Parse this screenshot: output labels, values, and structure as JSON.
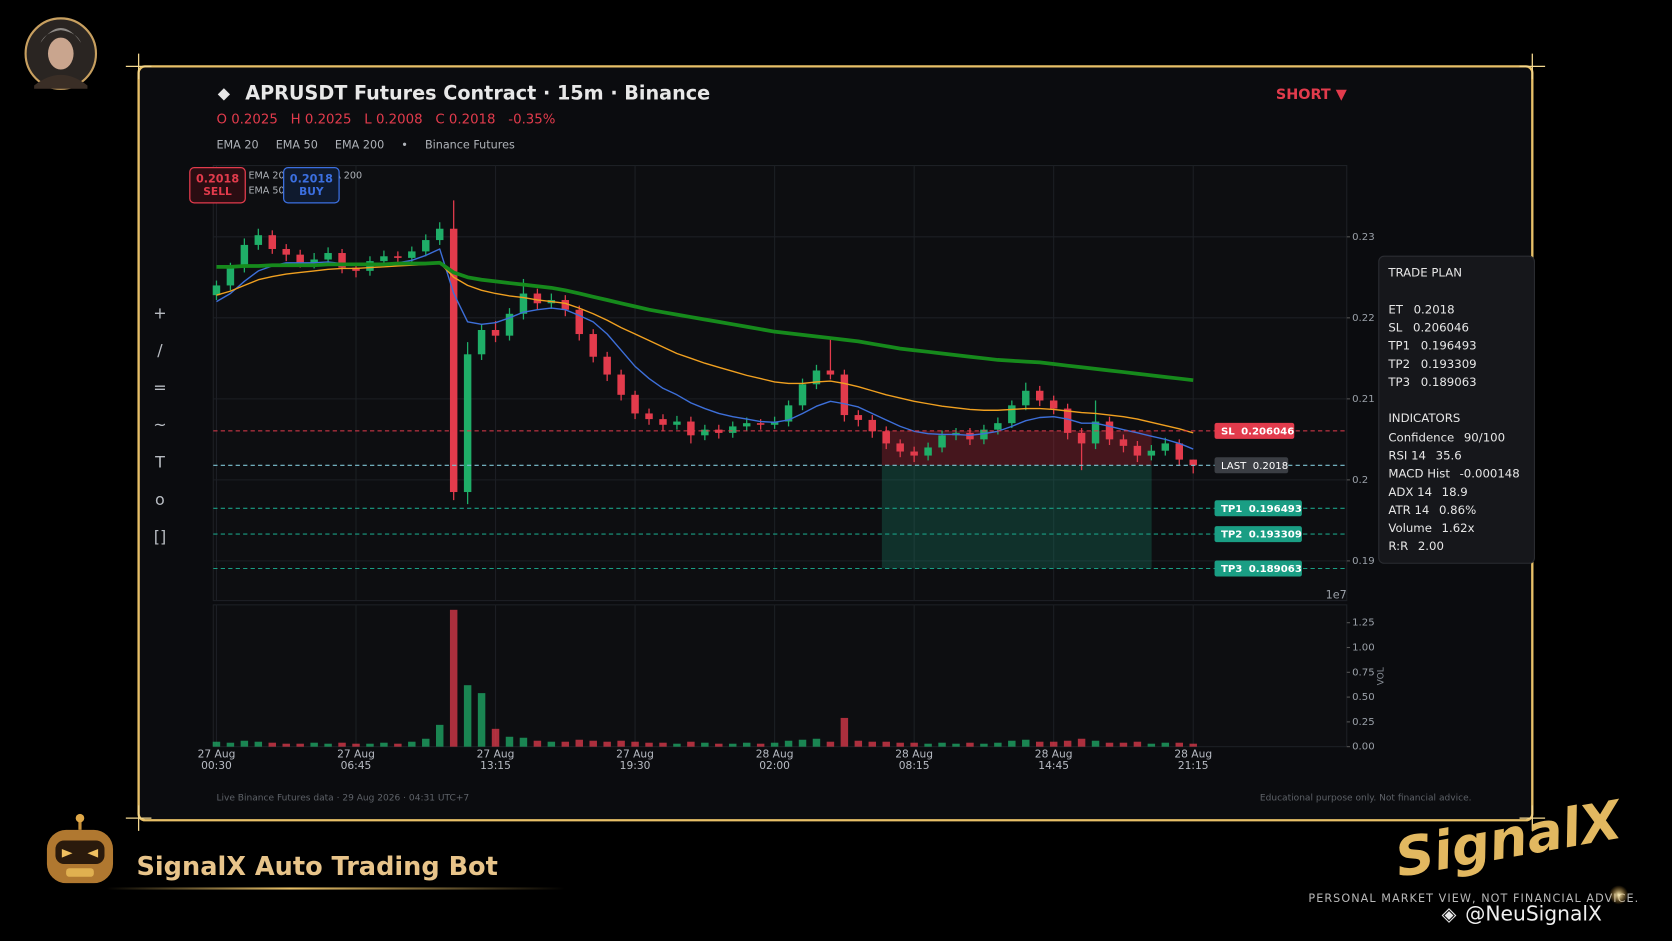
{
  "header": {
    "title": "APRUSDT Futures Contract  ·  15m  ·  Binance",
    "ohlc_labels": [
      "O",
      "H",
      "L",
      "C"
    ],
    "change": "-0.35%",
    "signal": "SHORT ▼",
    "source": "Binance Futures"
  },
  "toolbar": [
    "+",
    "/",
    "=",
    "~",
    "T",
    "o",
    "[]"
  ],
  "badges": [
    {
      "value": 0.2018,
      "label": "SELL",
      "color": "#e23b4c"
    },
    {
      "value": 0.2018,
      "label": "BUY",
      "color": "#3b6fe0"
    }
  ],
  "chart_data": {
    "type": "candlestick",
    "categories": [
      "27 Aug\n00:30",
      null,
      null,
      null,
      null,
      null,
      null,
      null,
      null,
      null,
      "27 Aug\n06:45",
      null,
      null,
      null,
      null,
      null,
      null,
      null,
      null,
      null,
      "27 Aug\n13:15",
      null,
      null,
      null,
      null,
      null,
      null,
      null,
      null,
      null,
      "27 Aug\n19:30",
      null,
      null,
      null,
      null,
      null,
      null,
      null,
      null,
      null,
      "28 Aug\n02:00",
      null,
      null,
      null,
      null,
      null,
      null,
      null,
      null,
      null,
      "28 Aug\n08:15",
      null,
      null,
      null,
      null,
      null,
      null,
      null,
      null,
      null,
      "28 Aug\n14:45",
      null,
      null,
      null,
      null,
      null,
      null,
      null,
      null,
      null,
      "28 Aug\n21:15"
    ],
    "candles": {
      "open": [
        0.2228,
        0.224,
        0.2262,
        0.229,
        0.2302,
        0.2285,
        0.2278,
        0.2268,
        0.2272,
        0.228,
        0.2262,
        0.2258,
        0.227,
        0.2276,
        0.2274,
        0.2282,
        0.2296,
        0.231,
        0.1985,
        0.2155,
        0.2185,
        0.2178,
        0.2205,
        0.223,
        0.2218,
        0.2222,
        0.221,
        0.218,
        0.2152,
        0.213,
        0.2105,
        0.2082,
        0.2075,
        0.2068,
        0.2072,
        0.2055,
        0.2062,
        0.2058,
        0.2066,
        0.207,
        0.2068,
        0.2072,
        0.2092,
        0.2118,
        0.2135,
        0.213,
        0.208,
        0.2074,
        0.206,
        0.2045,
        0.2035,
        0.203,
        0.204,
        0.2055,
        0.2058,
        0.205,
        0.2062,
        0.207,
        0.2092,
        0.211,
        0.2098,
        0.2088,
        0.2058,
        0.2045,
        0.2072,
        0.205,
        0.2042,
        0.203,
        0.2036,
        0.2045,
        0.2025
      ],
      "high": [
        0.2246,
        0.2268,
        0.2298,
        0.231,
        0.2308,
        0.2291,
        0.2284,
        0.228,
        0.2287,
        0.2285,
        0.2268,
        0.2276,
        0.2283,
        0.2282,
        0.2288,
        0.2303,
        0.2318,
        0.2345,
        0.217,
        0.2192,
        0.2196,
        0.2212,
        0.2248,
        0.2236,
        0.223,
        0.2228,
        0.2215,
        0.2186,
        0.2158,
        0.2136,
        0.211,
        0.2088,
        0.2081,
        0.2079,
        0.2078,
        0.2068,
        0.2068,
        0.2072,
        0.2077,
        0.2075,
        0.2078,
        0.2098,
        0.2125,
        0.2142,
        0.2176,
        0.2136,
        0.2086,
        0.208,
        0.2066,
        0.205,
        0.2041,
        0.2046,
        0.2061,
        0.2064,
        0.2064,
        0.2068,
        0.2077,
        0.2098,
        0.212,
        0.2116,
        0.2104,
        0.2094,
        0.2064,
        0.2098,
        0.2078,
        0.2056,
        0.2048,
        0.2043,
        0.2052,
        0.205,
        0.2025
      ],
      "low": [
        0.2222,
        0.2234,
        0.2256,
        0.2284,
        0.2279,
        0.227,
        0.2262,
        0.2261,
        0.2266,
        0.2255,
        0.225,
        0.2252,
        0.2264,
        0.2268,
        0.2268,
        0.2276,
        0.229,
        0.1975,
        0.197,
        0.2148,
        0.217,
        0.2172,
        0.2198,
        0.221,
        0.2211,
        0.2202,
        0.2172,
        0.2145,
        0.2122,
        0.2098,
        0.2075,
        0.2068,
        0.206,
        0.2062,
        0.2045,
        0.2049,
        0.2051,
        0.2052,
        0.206,
        0.2062,
        0.2063,
        0.2066,
        0.2086,
        0.2112,
        0.2124,
        0.2072,
        0.2066,
        0.2052,
        0.2038,
        0.2028,
        0.2022,
        0.2024,
        0.2034,
        0.2049,
        0.2043,
        0.2044,
        0.2056,
        0.2064,
        0.2086,
        0.2091,
        0.2081,
        0.205,
        0.2012,
        0.2038,
        0.2043,
        0.2034,
        0.2022,
        0.2024,
        0.203,
        0.2018,
        0.2008
      ],
      "close": [
        0.224,
        0.2262,
        0.229,
        0.2302,
        0.2285,
        0.2278,
        0.2268,
        0.2272,
        0.228,
        0.2262,
        0.2258,
        0.227,
        0.2276,
        0.2274,
        0.2282,
        0.2296,
        0.231,
        0.1985,
        0.2155,
        0.2185,
        0.2178,
        0.2205,
        0.223,
        0.2218,
        0.2222,
        0.221,
        0.218,
        0.2152,
        0.213,
        0.2105,
        0.2082,
        0.2075,
        0.2068,
        0.2072,
        0.2055,
        0.2062,
        0.2058,
        0.2066,
        0.207,
        0.2068,
        0.2072,
        0.2092,
        0.2118,
        0.2135,
        0.213,
        0.208,
        0.2074,
        0.206,
        0.2045,
        0.2035,
        0.203,
        0.204,
        0.2055,
        0.2058,
        0.205,
        0.2062,
        0.207,
        0.2092,
        0.211,
        0.2098,
        0.2088,
        0.2058,
        0.2045,
        0.2072,
        0.205,
        0.2042,
        0.203,
        0.2036,
        0.2045,
        0.2025,
        0.2018
      ]
    },
    "up_color": "#1fae68",
    "down_color": "#e23b4c",
    "series": [
      {
        "name": "EMA 20",
        "color": "#3d6fd9",
        "width": 1.3,
        "values": [
          0.222,
          0.223,
          0.2245,
          0.2258,
          0.2264,
          0.2268,
          0.2268,
          0.2268,
          0.2269,
          0.2267,
          0.2265,
          0.2266,
          0.2267,
          0.2268,
          0.2271,
          0.2277,
          0.2285,
          0.223,
          0.2195,
          0.2192,
          0.2194,
          0.22,
          0.2207,
          0.221,
          0.2212,
          0.221,
          0.2203,
          0.2195,
          0.218,
          0.216,
          0.214,
          0.2125,
          0.2113,
          0.2105,
          0.2095,
          0.2088,
          0.2082,
          0.2078,
          0.2075,
          0.2072,
          0.2071,
          0.2074,
          0.2082,
          0.2091,
          0.2097,
          0.2094,
          0.209,
          0.2082,
          0.2074,
          0.2066,
          0.206,
          0.2057,
          0.2056,
          0.2056,
          0.2055,
          0.2057,
          0.206,
          0.2066,
          0.2073,
          0.2077,
          0.2078,
          0.2075,
          0.207,
          0.207,
          0.2066,
          0.2062,
          0.2058,
          0.2054,
          0.205,
          0.2045,
          0.2038
        ]
      },
      {
        "name": "EMA 50",
        "color": "#f0a020",
        "width": 1.3,
        "values": [
          0.2228,
          0.2233,
          0.224,
          0.2247,
          0.2251,
          0.2254,
          0.2256,
          0.2258,
          0.226,
          0.2261,
          0.2261,
          0.2262,
          0.2263,
          0.2264,
          0.2265,
          0.2266,
          0.2268,
          0.225,
          0.224,
          0.2234,
          0.223,
          0.2227,
          0.2225,
          0.2222,
          0.222,
          0.2218,
          0.2212,
          0.2205,
          0.2197,
          0.2188,
          0.218,
          0.2172,
          0.2164,
          0.2156,
          0.215,
          0.2144,
          0.2139,
          0.2134,
          0.2129,
          0.2125,
          0.2121,
          0.2119,
          0.2119,
          0.2121,
          0.2122,
          0.2119,
          0.2115,
          0.211,
          0.2105,
          0.2101,
          0.2097,
          0.2094,
          0.2091,
          0.2089,
          0.2087,
          0.2086,
          0.2086,
          0.2087,
          0.2088,
          0.2088,
          0.2087,
          0.2085,
          0.2083,
          0.2082,
          0.208,
          0.2078,
          0.2075,
          0.2071,
          0.2067,
          0.2063,
          0.2058
        ]
      },
      {
        "name": "EMA 200",
        "color": "#168a1c",
        "width": 3.5,
        "values": [
          0.2263,
          0.2263,
          0.2264,
          0.2264,
          0.2265,
          0.2265,
          0.2265,
          0.2265,
          0.2266,
          0.2266,
          0.2266,
          0.2266,
          0.2266,
          0.2267,
          0.2267,
          0.2267,
          0.2268,
          0.2256,
          0.225,
          0.2247,
          0.2245,
          0.2243,
          0.2241,
          0.2239,
          0.2237,
          0.2234,
          0.223,
          0.2226,
          0.2222,
          0.2218,
          0.2214,
          0.221,
          0.2207,
          0.2204,
          0.2201,
          0.2198,
          0.2195,
          0.2192,
          0.2189,
          0.2186,
          0.2183,
          0.2181,
          0.2179,
          0.2177,
          0.2175,
          0.2173,
          0.2171,
          0.2168,
          0.2165,
          0.2162,
          0.216,
          0.2158,
          0.2156,
          0.2154,
          0.2152,
          0.215,
          0.2148,
          0.2147,
          0.2146,
          0.2145,
          0.2143,
          0.2141,
          0.2139,
          0.2137,
          0.2135,
          0.2133,
          0.2131,
          0.2129,
          0.2127,
          0.2125,
          0.2123
        ]
      }
    ],
    "ylim": [
      0.1851,
      0.2388
    ],
    "yticks": [
      0.19,
      0.2,
      0.21,
      0.22,
      0.23
    ],
    "grid": true,
    "levels": [
      {
        "name": "SL",
        "value": 0.206046,
        "color": "#e23b4c",
        "box": "#e23b4c"
      },
      {
        "name": "LAST",
        "value": 0.2018,
        "color": "#7fc4d4",
        "box": "#3b3e44"
      },
      {
        "name": "TP1",
        "value": 0.196493,
        "color": "#1a9e84",
        "box": "#1a9e84"
      },
      {
        "name": "TP2",
        "value": 0.193309,
        "color": "#1a9e84",
        "box": "#1a9e84"
      },
      {
        "name": "TP3",
        "value": 0.189063,
        "color": "#1a9e84",
        "box": "#1a9e84"
      }
    ],
    "volume": {
      "label": "VOL",
      "offset_label": "1e7",
      "values": [
        0.05,
        0.04,
        0.06,
        0.05,
        0.04,
        0.03,
        0.03,
        0.04,
        0.03,
        0.04,
        0.03,
        0.03,
        0.04,
        0.03,
        0.05,
        0.08,
        0.22,
        1.38,
        0.62,
        0.54,
        0.18,
        0.1,
        0.09,
        0.06,
        0.05,
        0.05,
        0.07,
        0.06,
        0.05,
        0.06,
        0.05,
        0.04,
        0.04,
        0.03,
        0.05,
        0.04,
        0.03,
        0.03,
        0.04,
        0.03,
        0.04,
        0.06,
        0.07,
        0.08,
        0.05,
        0.29,
        0.06,
        0.05,
        0.05,
        0.04,
        0.04,
        0.03,
        0.04,
        0.03,
        0.04,
        0.03,
        0.04,
        0.06,
        0.07,
        0.05,
        0.05,
        0.06,
        0.08,
        0.06,
        0.04,
        0.04,
        0.05,
        0.03,
        0.04,
        0.04,
        0.03
      ],
      "ylim": [
        0,
        1.43
      ],
      "yticks": [
        {
          "value": 0,
          "label": "0.00"
        },
        {
          "value": 0.25,
          "label": "0.25"
        },
        {
          "value": 0.5,
          "label": "0.50"
        },
        {
          "value": 0.75,
          "label": "0.75"
        },
        {
          "value": 1,
          "label": "1.00"
        },
        {
          "value": 1.25,
          "label": "1.25"
        }
      ]
    }
  },
  "trade_plan": {
    "title": "TRADE PLAN",
    "rows": [
      [
        "ET",
        0.2018
      ],
      [
        "SL",
        0.206046
      ],
      [
        "TP1",
        0.196493
      ],
      [
        "TP2",
        0.193309
      ],
      [
        "TP3",
        0.189063
      ]
    ],
    "indicators_title": "INDICATORS",
    "indicators": [
      [
        "Confidence",
        "90/100"
      ],
      [
        "RSI 14",
        35.6
      ],
      [
        "MACD Hist",
        -0.000148
      ],
      [
        "ADX 14",
        18.9
      ],
      [
        "ATR 14",
        "0.86%"
      ],
      [
        "Volume",
        "1.62x"
      ],
      [
        "R:R",
        "2.00"
      ]
    ]
  },
  "footer": {
    "left": "Live Binance Futures data  ·  29 Aug 2026 · 04:31 UTC+7",
    "right": "Educational purpose only. Not financial advice."
  },
  "branding": {
    "bot": "SignalX Auto Trading Bot",
    "logo": "SignalX",
    "tagline": "PERSONAL MARKET VIEW, NOT FINANCIAL ADVICE.",
    "handle": "@NeuSignalX"
  }
}
